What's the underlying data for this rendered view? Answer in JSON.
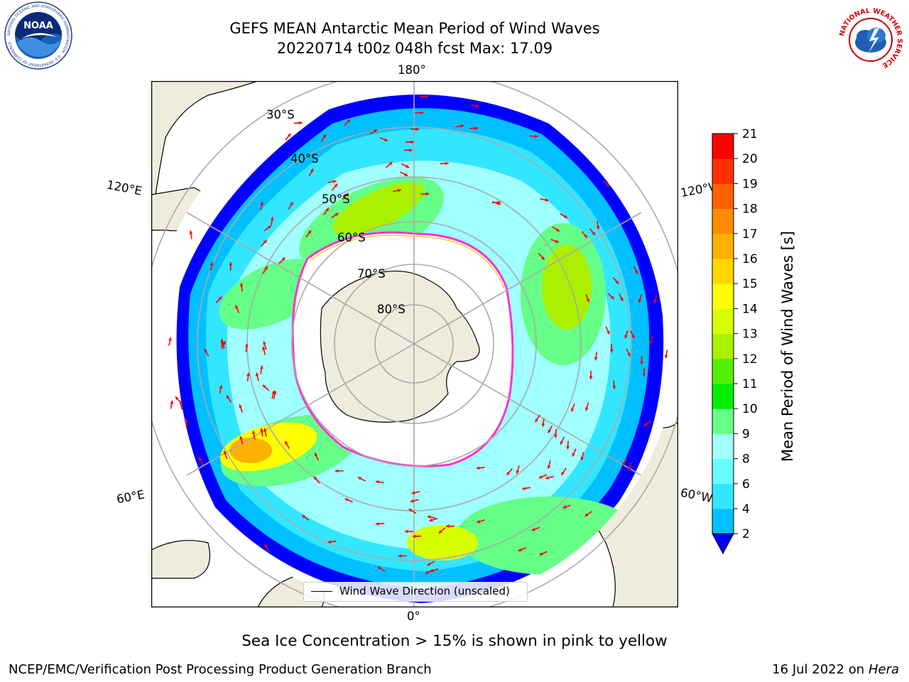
{
  "title": {
    "line1": "GEFS MEAN Antarctic Mean Period of Wind Waves",
    "line2": "20220714 t00z 048h fcst   Max: 17.09"
  },
  "logos": {
    "left": {
      "icon": "noaa-logo",
      "center_text": "NOAA",
      "ring_text": "NATIONAL OCEANIC AND ATMOSPHERIC ADMINISTRATION · U.S. DEPARTMENT OF COMMERCE"
    },
    "right": {
      "icon": "nws-logo",
      "ring_text": "NATIONAL WEATHER SERVICE"
    }
  },
  "map": {
    "projection": "south-polar-stereographic",
    "longitude_labels": {
      "top": "180°",
      "left_upper": "120°E",
      "right_upper": "120°W",
      "left_lower": "60°E",
      "right_lower": "60°W",
      "bottom": "0°"
    },
    "latitude_labels": [
      "30°S",
      "40°S",
      "50°S",
      "60°S",
      "70°S",
      "80°S"
    ],
    "land_color": "#eeecdc",
    "ocean_no_data_color": "#ffffff",
    "sea_ice_edge_colors": [
      "#ff33cc",
      "#ffcc33"
    ],
    "wave_direction_arrow_color": "#ff0000",
    "legend": {
      "label": "Wind Wave Direction (unscaled)"
    }
  },
  "colorbar": {
    "title": "Mean Period of Wind Waves [s]",
    "ticks": [
      "2",
      "4",
      "6",
      "8",
      "9",
      "10",
      "11",
      "12",
      "13",
      "14",
      "15",
      "16",
      "17",
      "18",
      "19",
      "20",
      "21"
    ],
    "colors": [
      "#0055ff",
      "#00c0ff",
      "#33e6ff",
      "#66ffff",
      "#a0ffff",
      "#66ff88",
      "#00ee00",
      "#55ee00",
      "#aaf000",
      "#d8ff00",
      "#ffff00",
      "#ffd700",
      "#ffb000",
      "#ff8c00",
      "#ff6000",
      "#ff3000",
      "#ff0000"
    ],
    "under_color": "#0000ff"
  },
  "caption": "Sea Ice Concentration > 15% is shown in pink to yellow",
  "footer": {
    "left": "NCEP/EMC/Verification Post Processing Product Generation Branch",
    "right_prefix": "16 Jul 2022 on ",
    "right_host": "Hera"
  }
}
